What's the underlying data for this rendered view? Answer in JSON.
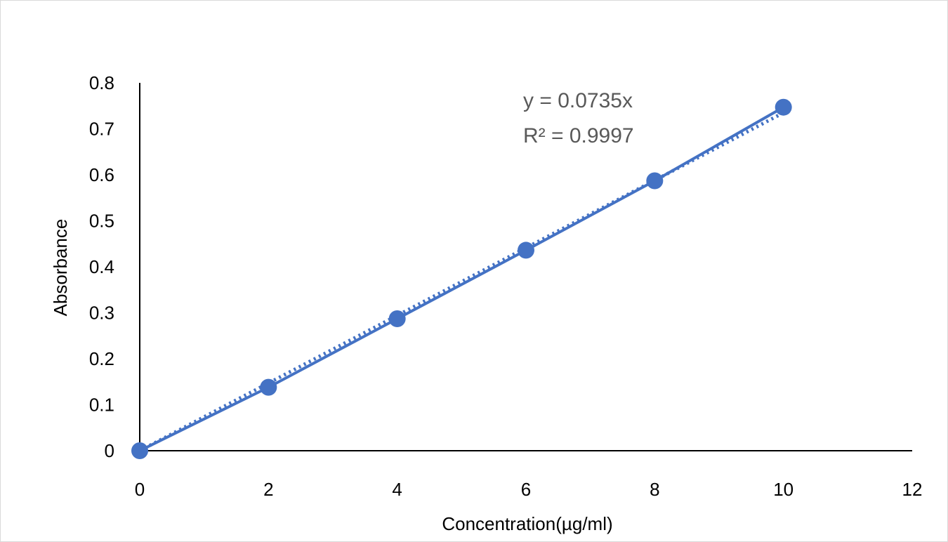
{
  "chart_data": {
    "type": "scatter",
    "title": "",
    "xlabel": "Concentration(µg/ml)",
    "ylabel": "Absorbance",
    "xlim": [
      0,
      12
    ],
    "ylim": [
      0,
      0.8
    ],
    "xticks": [
      0,
      2,
      4,
      6,
      8,
      10,
      12
    ],
    "yticks": [
      0,
      0.1,
      0.2,
      0.3,
      0.4,
      0.5,
      0.6,
      0.7,
      0.8
    ],
    "grid": false,
    "series": [
      {
        "x": [
          0,
          2,
          4,
          6,
          8,
          10
        ],
        "y": [
          0,
          0.138,
          0.287,
          0.436,
          0.587,
          0.747
        ],
        "color": "#4472C4",
        "connected": true
      }
    ],
    "trendline": {
      "type": "linear",
      "slope": 0.0735,
      "intercept": 0,
      "style": "dotted",
      "color": "#4472C4",
      "equation": "y = 0.0735x",
      "r_squared": "R² = 0.9997"
    }
  }
}
